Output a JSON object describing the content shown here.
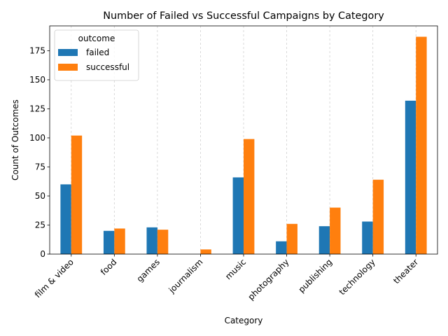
{
  "chart_data": {
    "type": "bar",
    "title": "Number of Failed vs Successful Campaigns by Category",
    "xlabel": "Category",
    "ylabel": "Count of Outcomes",
    "categories": [
      "film & video",
      "food",
      "games",
      "journalism",
      "music",
      "photography",
      "publishing",
      "technology",
      "theater"
    ],
    "series": [
      {
        "name": "failed",
        "color": "#1f77b4",
        "values": [
          60,
          20,
          23,
          0,
          66,
          11,
          24,
          28,
          132
        ]
      },
      {
        "name": "successful",
        "color": "#ff7f0e",
        "values": [
          102,
          22,
          21,
          4,
          99,
          26,
          40,
          64,
          187
        ]
      }
    ],
    "ylim": [
      0,
      196.35
    ],
    "yticks": [
      0,
      25,
      50,
      75,
      100,
      125,
      150,
      175
    ],
    "grid": "x-dashed",
    "legend": {
      "title": "outcome",
      "placement": "top-left"
    }
  }
}
